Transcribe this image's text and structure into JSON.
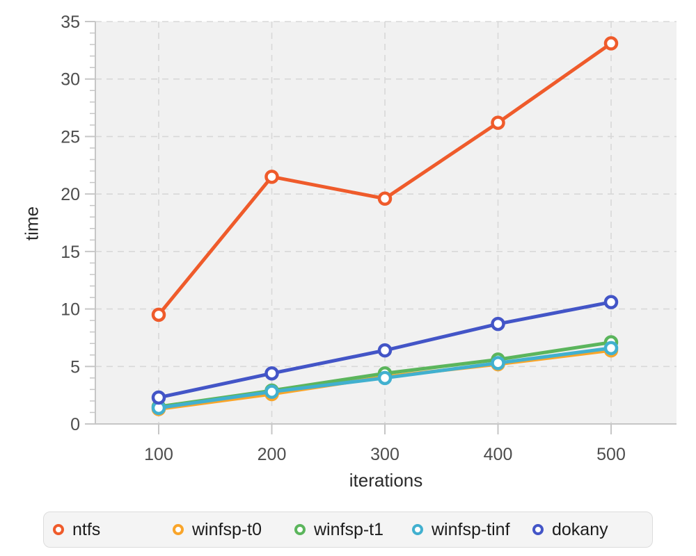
{
  "chart_data": {
    "type": "line",
    "x": [
      100,
      200,
      300,
      400,
      500
    ],
    "xlabel": "iterations",
    "ylabel": "time",
    "ylim": [
      0,
      35
    ],
    "yticks": [
      0,
      5,
      10,
      15,
      20,
      25,
      30,
      35
    ],
    "xticks": [
      100,
      200,
      300,
      400,
      500
    ],
    "grid": "dashed",
    "legend_position": "bottom",
    "series": [
      {
        "name": "ntfs",
        "color": "#ef5b2b",
        "values": [
          9.5,
          21.5,
          19.6,
          26.2,
          33.1
        ]
      },
      {
        "name": "winfsp-t0",
        "color": "#f9a52a",
        "values": [
          1.3,
          2.6,
          4.1,
          5.2,
          6.4
        ]
      },
      {
        "name": "winfsp-t1",
        "color": "#5bb55c",
        "values": [
          1.5,
          2.9,
          4.4,
          5.6,
          7.1
        ]
      },
      {
        "name": "winfsp-tinf",
        "color": "#41b0cf",
        "values": [
          1.4,
          2.8,
          4.0,
          5.3,
          6.6
        ]
      },
      {
        "name": "dokany",
        "color": "#4355c7",
        "values": [
          2.3,
          4.4,
          6.4,
          8.7,
          10.6
        ]
      }
    ]
  },
  "style": {
    "plot_bg": "#f1f1f1",
    "grid_color": "#d8d8d8",
    "axis_color": "#c6c6c6",
    "tick_label_color": "#4d4d4d"
  }
}
